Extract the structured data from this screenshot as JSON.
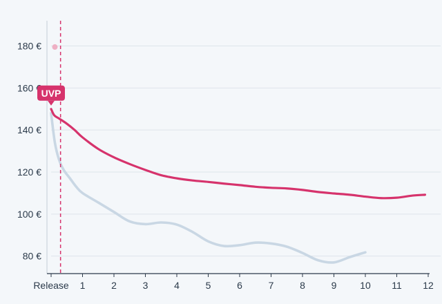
{
  "chart_data": {
    "type": "line",
    "title": "",
    "xlabel": "",
    "ylabel": "",
    "x_categories": [
      "Release",
      "1",
      "2",
      "3",
      "4",
      "5",
      "6",
      "7",
      "8",
      "9",
      "10",
      "11",
      "12"
    ],
    "xlim": [
      0,
      12
    ],
    "ylim": [
      72,
      192
    ],
    "y_ticks": [
      80,
      100,
      120,
      140,
      160,
      180
    ],
    "y_tick_labels": [
      "80 €",
      "100 €",
      "120 €",
      "140 €",
      "160 €",
      "180 €"
    ],
    "grid": "horizontal",
    "marker_line_x": 0.3,
    "uvp_label": "UVP",
    "uvp_value": 150,
    "outlier_point": {
      "x": 0.12,
      "y": 179.5
    },
    "series": [
      {
        "color": "#d6336c",
        "points": [
          [
            0,
            150
          ],
          [
            0.1,
            147
          ],
          [
            0.25,
            145.5
          ],
          [
            0.5,
            143
          ],
          [
            0.75,
            140
          ],
          [
            1,
            136.5
          ],
          [
            1.5,
            131
          ],
          [
            2,
            127
          ],
          [
            2.5,
            123.8
          ],
          [
            3,
            121
          ],
          [
            3.5,
            118.5
          ],
          [
            4,
            117
          ],
          [
            4.5,
            116
          ],
          [
            5,
            115.3
          ],
          [
            5.5,
            114.5
          ],
          [
            6,
            113.8
          ],
          [
            6.5,
            113
          ],
          [
            7,
            112.5
          ],
          [
            7.5,
            112.2
          ],
          [
            8,
            111.5
          ],
          [
            8.5,
            110.5
          ],
          [
            9,
            109.8
          ],
          [
            9.5,
            109.2
          ],
          [
            10,
            108.3
          ],
          [
            10.5,
            107.6
          ],
          [
            11,
            107.8
          ],
          [
            11.5,
            108.8
          ],
          [
            11.9,
            109.2
          ]
        ]
      },
      {
        "color": "#c9d7e4",
        "points": [
          [
            0,
            148
          ],
          [
            0.12,
            134
          ],
          [
            0.25,
            126
          ],
          [
            0.4,
            121
          ],
          [
            0.6,
            117
          ],
          [
            0.8,
            113
          ],
          [
            1,
            110
          ],
          [
            1.5,
            105.5
          ],
          [
            2,
            101
          ],
          [
            2.5,
            96.5
          ],
          [
            3,
            95.2
          ],
          [
            3.5,
            96
          ],
          [
            4,
            95
          ],
          [
            4.5,
            91.5
          ],
          [
            5,
            87
          ],
          [
            5.5,
            84.8
          ],
          [
            6,
            85.2
          ],
          [
            6.5,
            86.4
          ],
          [
            7,
            86
          ],
          [
            7.5,
            84.5
          ],
          [
            8,
            81.5
          ],
          [
            8.5,
            78
          ],
          [
            9,
            77
          ],
          [
            9.5,
            79.5
          ],
          [
            10,
            81.8
          ]
        ]
      }
    ]
  }
}
